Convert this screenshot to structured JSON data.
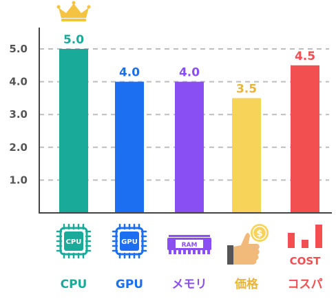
{
  "chart_data": {
    "type": "bar",
    "categories": [
      "CPU",
      "GPU",
      "メモリ",
      "価格",
      "コスパ"
    ],
    "values": [
      5.0,
      4.0,
      4.0,
      3.5,
      4.5
    ],
    "value_labels": [
      "5.0",
      "4.0",
      "4.0",
      "3.5",
      "4.5"
    ],
    "colors": [
      "#1aaa9a",
      "#1b6ff0",
      "#8a4ff2",
      "#f8d35a",
      "#f24f50"
    ],
    "label_colors": [
      "#1aaa9a",
      "#1b6ff0",
      "#8a4ff2",
      "#e8b53a",
      "#f24f50"
    ],
    "yticks": [
      "1.0",
      "2.0",
      "3.0",
      "4.0",
      "5.0"
    ],
    "ylim": [
      0,
      5.0
    ],
    "grid": true,
    "title": "",
    "xlabel": "",
    "ylabel": "",
    "icons": [
      {
        "name": "cpu-chip-icon",
        "text": "CPU"
      },
      {
        "name": "gpu-chip-icon",
        "text": "GPU"
      },
      {
        "name": "ram-module-icon",
        "text": "RAM"
      },
      {
        "name": "thumbs-up-coin-icon",
        "text": "$"
      },
      {
        "name": "cost-bars-icon",
        "text": "COST"
      }
    ],
    "highlight": {
      "category": "CPU",
      "icon": "crown-icon",
      "color": "#f5c342"
    }
  }
}
